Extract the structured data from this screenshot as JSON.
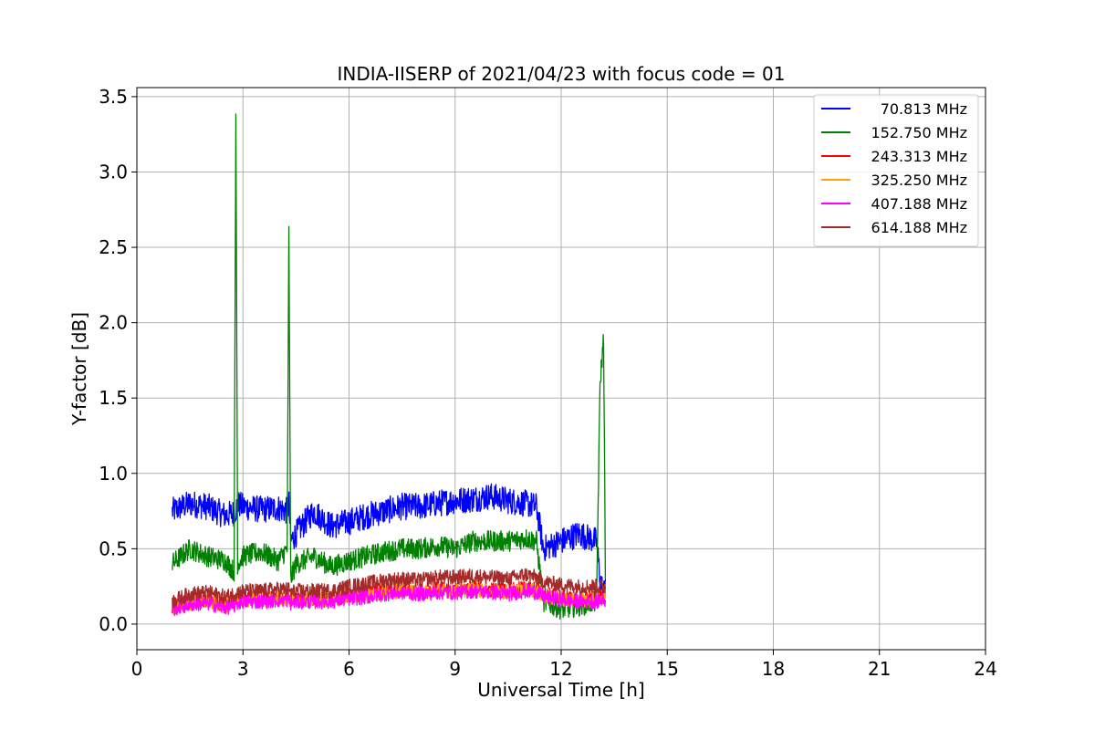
{
  "chart_data": {
    "type": "line",
    "title": "INDIA-IISERP of 2021/04/23 with focus code = 01",
    "xlabel": "Universal Time [h]",
    "ylabel": "Y-factor [dB]",
    "xlim": [
      0,
      24
    ],
    "ylim": [
      -0.17,
      3.56
    ],
    "xticks": [
      "0",
      "3",
      "6",
      "9",
      "12",
      "15",
      "18",
      "21",
      "24"
    ],
    "xtick_values": [
      0,
      3,
      6,
      9,
      12,
      15,
      18,
      21,
      24
    ],
    "yticks": [
      "0.0",
      "0.5",
      "1.0",
      "1.5",
      "2.0",
      "2.5",
      "3.0",
      "3.5"
    ],
    "ytick_values": [
      0.0,
      0.5,
      1.0,
      1.5,
      2.0,
      2.5,
      3.0,
      3.5
    ],
    "grid": true,
    "legend_position": "top-right",
    "x": [
      1.0,
      1.5,
      2.0,
      2.5,
      2.75,
      2.8,
      2.85,
      3.0,
      3.5,
      4.0,
      4.25,
      4.3,
      4.35,
      4.5,
      5.0,
      5.5,
      6.0,
      6.5,
      7.0,
      7.5,
      8.0,
      8.5,
      9.0,
      9.5,
      10.0,
      10.5,
      11.0,
      11.3,
      11.5,
      12.0,
      12.5,
      13.0,
      13.1,
      13.2,
      13.25
    ],
    "series": [
      {
        "name": "70.813 MHz",
        "color": "#0000ff",
        "values": [
          0.75,
          0.8,
          0.78,
          0.72,
          0.74,
          0.76,
          0.8,
          0.78,
          0.76,
          0.77,
          0.75,
          0.8,
          0.55,
          0.6,
          0.75,
          0.65,
          0.68,
          0.72,
          0.75,
          0.78,
          0.78,
          0.8,
          0.82,
          0.83,
          0.85,
          0.82,
          0.8,
          0.78,
          0.5,
          0.55,
          0.6,
          0.55,
          0.3,
          0.2,
          0.3
        ]
      },
      {
        "name": "152.750 MHz",
        "color": "#008000",
        "values": [
          0.4,
          0.5,
          0.45,
          0.42,
          0.35,
          3.38,
          0.4,
          0.45,
          0.48,
          0.42,
          0.5,
          2.6,
          0.3,
          0.4,
          0.45,
          0.38,
          0.42,
          0.45,
          0.48,
          0.5,
          0.5,
          0.52,
          0.5,
          0.55,
          0.55,
          0.55,
          0.57,
          0.55,
          0.15,
          0.1,
          0.12,
          0.15,
          1.6,
          1.9,
          0.3
        ]
      },
      {
        "name": "243.313 MHz",
        "color": "#ff0000",
        "values": [
          0.12,
          0.15,
          0.16,
          0.13,
          0.15,
          0.16,
          0.16,
          0.17,
          0.17,
          0.18,
          0.18,
          0.18,
          0.16,
          0.17,
          0.17,
          0.17,
          0.19,
          0.2,
          0.22,
          0.23,
          0.22,
          0.23,
          0.23,
          0.24,
          0.23,
          0.22,
          0.24,
          0.23,
          0.2,
          0.18,
          0.17,
          0.17,
          0.18,
          0.18,
          0.18
        ]
      },
      {
        "name": "325.250 MHz",
        "color": "#ffa500",
        "values": [
          0.1,
          0.14,
          0.15,
          0.12,
          0.14,
          0.15,
          0.15,
          0.16,
          0.16,
          0.17,
          0.17,
          0.17,
          0.15,
          0.16,
          0.16,
          0.16,
          0.18,
          0.19,
          0.21,
          0.22,
          0.21,
          0.22,
          0.22,
          0.23,
          0.22,
          0.21,
          0.23,
          0.22,
          0.19,
          0.17,
          0.16,
          0.16,
          0.17,
          0.17,
          0.17
        ]
      },
      {
        "name": "407.188 MHz",
        "color": "#ff00ff",
        "values": [
          0.1,
          0.13,
          0.14,
          0.11,
          0.12,
          0.13,
          0.14,
          0.15,
          0.15,
          0.16,
          0.16,
          0.16,
          0.14,
          0.15,
          0.15,
          0.15,
          0.17,
          0.18,
          0.2,
          0.21,
          0.2,
          0.21,
          0.21,
          0.22,
          0.21,
          0.2,
          0.22,
          0.21,
          0.18,
          0.16,
          0.15,
          0.15,
          0.16,
          0.16,
          0.16
        ]
      },
      {
        "name": "614.188 MHz",
        "color": "#a52a2a",
        "values": [
          0.15,
          0.2,
          0.21,
          0.18,
          0.2,
          0.21,
          0.21,
          0.22,
          0.22,
          0.23,
          0.23,
          0.23,
          0.21,
          0.22,
          0.22,
          0.22,
          0.25,
          0.27,
          0.29,
          0.3,
          0.29,
          0.31,
          0.31,
          0.32,
          0.31,
          0.3,
          0.33,
          0.31,
          0.28,
          0.26,
          0.25,
          0.25,
          0.25,
          0.25,
          0.25
        ]
      }
    ]
  }
}
